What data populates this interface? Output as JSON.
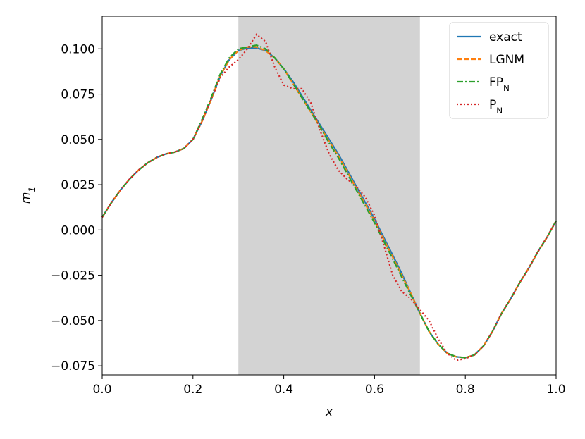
{
  "chart_data": {
    "type": "line",
    "x_label": "x",
    "y_label": "m_1",
    "xlim": [
      0,
      1
    ],
    "ylim": [
      -0.08,
      0.118
    ],
    "xticks": [
      {
        "value": 0,
        "label": "0.0"
      },
      0.2,
      0.4,
      0.6,
      0.8,
      {
        "value": 1,
        "label": "1.0"
      }
    ],
    "yticks": [
      {
        "value": -0.075,
        "label": "−0.075"
      },
      {
        "value": -0.05,
        "label": "−0.050"
      },
      {
        "value": -0.025,
        "label": "−0.025"
      },
      {
        "value": 0,
        "label": "0.000"
      },
      0.025,
      {
        "value": 0.05,
        "label": "0.050"
      },
      0.075,
      {
        "value": 0.1,
        "label": "0.100"
      }
    ],
    "shaded_region": [
      0.3,
      0.7
    ],
    "shaded_color": "#d3d3d3",
    "legend": "upper right",
    "x": [
      0,
      0.02,
      0.04,
      0.06,
      0.08,
      0.1,
      0.12,
      0.14,
      0.16,
      0.18,
      0.2,
      0.22,
      0.24,
      0.26,
      0.28,
      0.3,
      0.32,
      0.34,
      0.36,
      0.38,
      0.4,
      0.42,
      0.44,
      0.46,
      0.48,
      0.5,
      0.52,
      0.54,
      0.56,
      0.58,
      0.6,
      0.62,
      0.64,
      0.66,
      0.68,
      0.7,
      0.72,
      0.74,
      0.76,
      0.78,
      0.8,
      0.82,
      0.84,
      0.86,
      0.88,
      0.9,
      0.92,
      0.94,
      0.96,
      0.98,
      1
    ],
    "series": [
      {
        "name": "exact",
        "color": "#1f77b4",
        "linestyle": "solid",
        "values": [
          0.007,
          0.015,
          0.022,
          0.028,
          0.033,
          0.037,
          0.04,
          0.042,
          0.043,
          0.045,
          0.05,
          0.06,
          0.072,
          0.085,
          0.094,
          0.099,
          0.1005,
          0.1005,
          0.099,
          0.095,
          0.089,
          0.082,
          0.074,
          0.066,
          0.058,
          0.05,
          0.042,
          0.033,
          0.024,
          0.015,
          0.006,
          -0.004,
          -0.014,
          -0.024,
          -0.035,
          -0.046,
          -0.056,
          -0.063,
          -0.068,
          -0.07,
          -0.0705,
          -0.069,
          -0.064,
          -0.056,
          -0.046,
          -0.038,
          -0.029,
          -0.021,
          -0.012,
          -0.004,
          0.005
        ]
      },
      {
        "name": "LGNM",
        "color": "#ff7f0e",
        "linestyle": "dashed",
        "values": [
          0.007,
          0.015,
          0.022,
          0.028,
          0.033,
          0.037,
          0.04,
          0.042,
          0.043,
          0.045,
          0.05,
          0.06,
          0.072,
          0.085,
          0.094,
          0.099,
          0.101,
          0.101,
          0.099,
          0.095,
          0.089,
          0.081,
          0.073,
          0.065,
          0.057,
          0.049,
          0.041,
          0.032,
          0.023,
          0.014,
          0.005,
          -0.005,
          -0.015,
          -0.025,
          -0.035,
          -0.046,
          -0.056,
          -0.063,
          -0.068,
          -0.07,
          -0.0705,
          -0.069,
          -0.064,
          -0.056,
          -0.046,
          -0.038,
          -0.029,
          -0.021,
          -0.012,
          -0.004,
          0.005
        ]
      },
      {
        "name": "FP_N",
        "color": "#2ca02c",
        "linestyle": "dashdot",
        "values": [
          0.007,
          0.015,
          0.022,
          0.028,
          0.033,
          0.037,
          0.04,
          0.042,
          0.043,
          0.045,
          0.05,
          0.061,
          0.073,
          0.086,
          0.095,
          0.1,
          0.101,
          0.102,
          0.1,
          0.095,
          0.089,
          0.081,
          0.073,
          0.065,
          0.057,
          0.048,
          0.04,
          0.031,
          0.022,
          0.013,
          0.004,
          -0.006,
          -0.016,
          -0.026,
          -0.036,
          -0.046,
          -0.056,
          -0.063,
          -0.068,
          -0.07,
          -0.0705,
          -0.069,
          -0.064,
          -0.056,
          -0.046,
          -0.038,
          -0.029,
          -0.021,
          -0.012,
          -0.004,
          0.005
        ]
      },
      {
        "name": "P_N",
        "color": "#d62728",
        "linestyle": "dotted",
        "values": [
          0.007,
          0.015,
          0.022,
          0.028,
          0.033,
          0.037,
          0.04,
          0.042,
          0.043,
          0.045,
          0.05,
          0.06,
          0.072,
          0.084,
          0.09,
          0.094,
          0.1,
          0.108,
          0.104,
          0.09,
          0.08,
          0.078,
          0.078,
          0.07,
          0.055,
          0.042,
          0.033,
          0.028,
          0.024,
          0.018,
          0.008,
          -0.008,
          -0.025,
          -0.034,
          -0.038,
          -0.044,
          -0.05,
          -0.06,
          -0.068,
          -0.072,
          -0.071,
          -0.069,
          -0.064,
          -0.056,
          -0.046,
          -0.038,
          -0.029,
          -0.021,
          -0.012,
          -0.004,
          0.005
        ]
      }
    ]
  }
}
